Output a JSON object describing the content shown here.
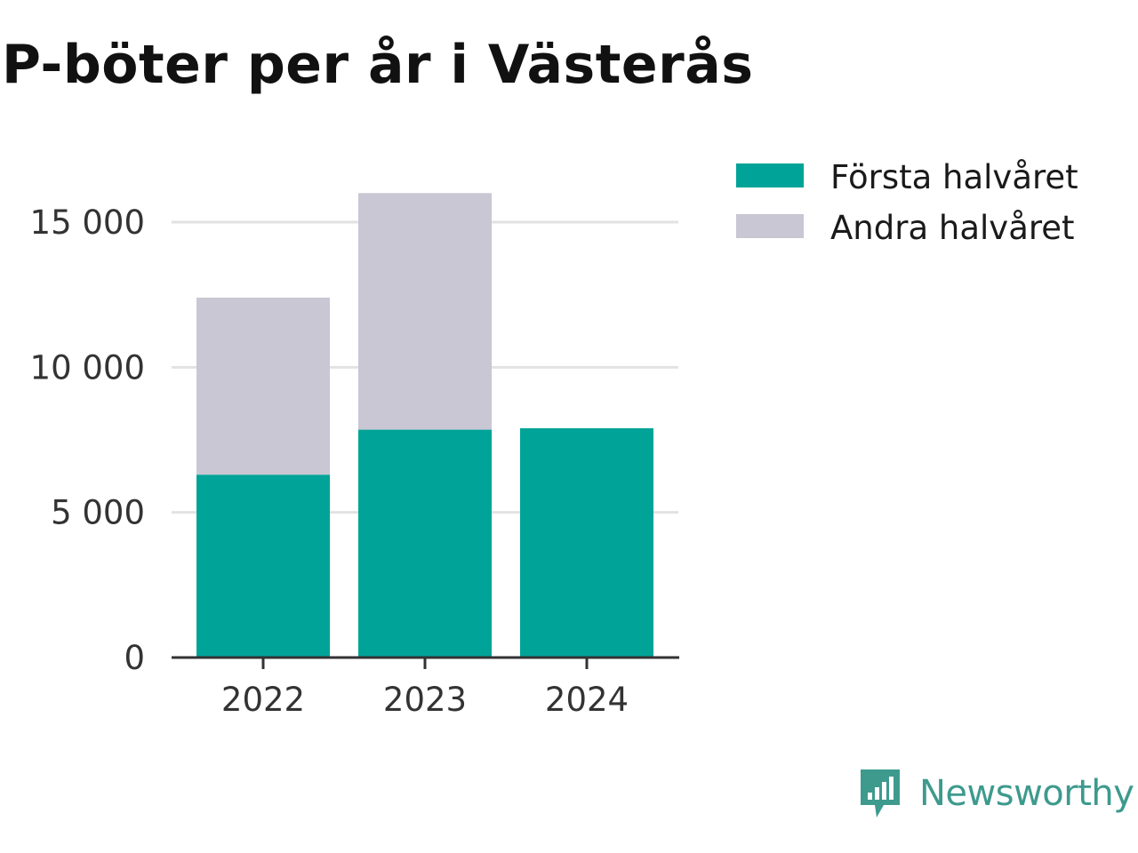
{
  "chart_data": {
    "type": "bar",
    "stacked": true,
    "title": "P-böter per år i Västerås",
    "categories": [
      "2022",
      "2023",
      "2024"
    ],
    "series": [
      {
        "name": "Första halvåret",
        "color": "#00a398",
        "values": [
          6300,
          7850,
          7900
        ]
      },
      {
        "name": "Andra halvåret",
        "color": "#c8c7d3",
        "values": [
          6100,
          8150,
          0
        ]
      }
    ],
    "ylim": [
      0,
      16000
    ],
    "yticks": [
      0,
      5000,
      10000,
      15000
    ],
    "ytick_labels": [
      "0",
      "5 000",
      "10 000",
      "15 000"
    ],
    "grid": true,
    "legend_position": "right"
  },
  "brand": {
    "name": "Newsworthy",
    "color": "#3d9a8d",
    "icon": "newsworthy-logo-icon"
  }
}
